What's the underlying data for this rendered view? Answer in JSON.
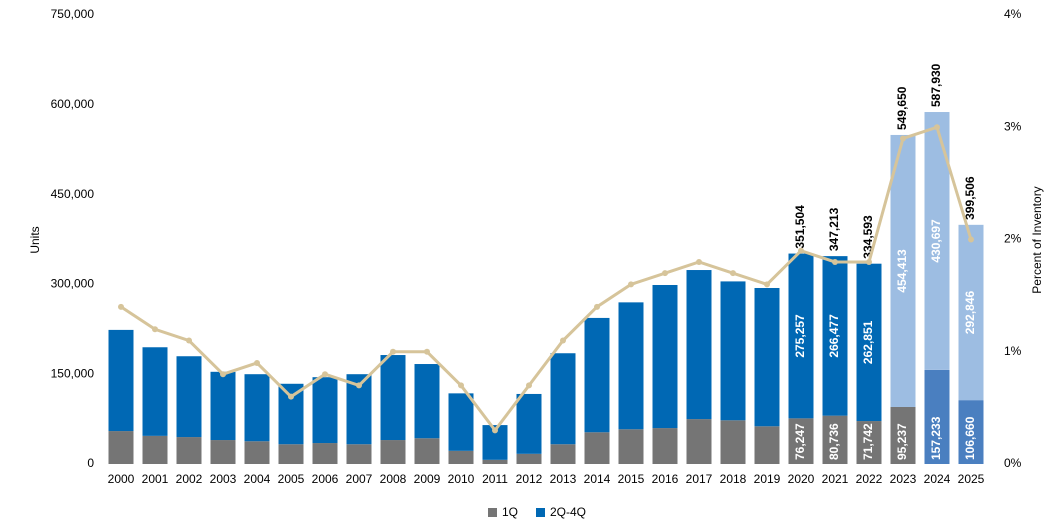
{
  "chart_data": {
    "type": "bar",
    "categories": [
      "2000",
      "2001",
      "2002",
      "2003",
      "2004",
      "2005",
      "2006",
      "2007",
      "2008",
      "2009",
      "2010",
      "2011",
      "2012",
      "2013",
      "2014",
      "2015",
      "2016",
      "2017",
      "2018",
      "2019",
      "2020",
      "2021",
      "2022",
      "2023",
      "2024",
      "2025"
    ],
    "series": [
      {
        "name": "1Q",
        "color": "#757575",
        "colors": [
          "#757575",
          "#757575",
          "#757575",
          "#757575",
          "#757575",
          "#757575",
          "#757575",
          "#757575",
          "#757575",
          "#757575",
          "#757575",
          "#757575",
          "#757575",
          "#757575",
          "#757575",
          "#757575",
          "#757575",
          "#757575",
          "#757575",
          "#757575",
          "#757575",
          "#757575",
          "#757575",
          "#757575",
          "#4a7fc0",
          "#4a7fc0"
        ],
        "values": [
          55000,
          47000,
          45000,
          40000,
          38000,
          33000,
          35000,
          33000,
          40000,
          43000,
          22000,
          7000,
          17000,
          33000,
          53000,
          58000,
          60000,
          75000,
          73000,
          63000,
          76247,
          80736,
          71742,
          95237,
          157233,
          106660
        ],
        "value_labels": [
          null,
          null,
          null,
          null,
          null,
          null,
          null,
          null,
          null,
          null,
          null,
          null,
          null,
          null,
          null,
          null,
          null,
          null,
          null,
          null,
          "76,247",
          "80,736",
          "71,742",
          "95,237",
          "157,233",
          "106,660"
        ]
      },
      {
        "name": "2Q-4Q",
        "color": "#0068b4",
        "colors": [
          "#0068b4",
          "#0068b4",
          "#0068b4",
          "#0068b4",
          "#0068b4",
          "#0068b4",
          "#0068b4",
          "#0068b4",
          "#0068b4",
          "#0068b4",
          "#0068b4",
          "#0068b4",
          "#0068b4",
          "#0068b4",
          "#0068b4",
          "#0068b4",
          "#0068b4",
          "#0068b4",
          "#0068b4",
          "#0068b4",
          "#0068b4",
          "#0068b4",
          "#0068b4",
          "#9dbde2",
          "#9dbde2",
          "#9dbde2"
        ],
        "values": [
          169000,
          148000,
          135000,
          114000,
          112000,
          101000,
          110000,
          117000,
          142000,
          124000,
          96000,
          58000,
          100000,
          152000,
          191000,
          212000,
          239000,
          249000,
          232000,
          231000,
          275257,
          266477,
          262851,
          454413,
          430697,
          292846
        ],
        "value_labels": [
          null,
          null,
          null,
          null,
          null,
          null,
          null,
          null,
          null,
          null,
          null,
          null,
          null,
          null,
          null,
          null,
          null,
          null,
          null,
          null,
          "275,257",
          "266,477",
          "262,851",
          "454,413",
          "430,697",
          "292,846"
        ]
      }
    ],
    "totals": [
      null,
      null,
      null,
      null,
      null,
      null,
      null,
      null,
      null,
      null,
      null,
      null,
      null,
      null,
      null,
      null,
      null,
      null,
      null,
      null,
      351504,
      347213,
      334593,
      549650,
      587930,
      399506
    ],
    "total_labels": [
      null,
      null,
      null,
      null,
      null,
      null,
      null,
      null,
      null,
      null,
      null,
      null,
      null,
      null,
      null,
      null,
      null,
      null,
      null,
      null,
      "351,504",
      "347,213",
      "334,593",
      "549,650",
      "587,930",
      "399,506"
    ],
    "line": {
      "type": "line",
      "axis": "y2",
      "color": "#d6c49a",
      "values": [
        1.4,
        1.2,
        1.1,
        0.8,
        0.9,
        0.6,
        0.8,
        0.7,
        1.0,
        1.0,
        0.7,
        0.3,
        0.7,
        1.1,
        1.4,
        1.6,
        1.7,
        1.8,
        1.7,
        1.6,
        1.9,
        1.8,
        1.8,
        2.9,
        3.0,
        2.0
      ]
    },
    "ylabel": "Units",
    "y2label": "Percent of Inventory",
    "ylim": [
      0,
      750000
    ],
    "yticks": [
      0,
      {
        "value": 150000,
        "label": "150,000"
      },
      {
        "value": 300000,
        "label": "300,000"
      },
      {
        "value": 450000,
        "label": "450,000"
      },
      {
        "value": 600000,
        "label": "600,000"
      },
      {
        "value": 750000,
        "label": "750,000"
      }
    ],
    "y2lim": [
      0,
      4
    ],
    "y2ticks": [
      {
        "value": 0,
        "label": "0%"
      },
      {
        "value": 1,
        "label": "1%"
      },
      {
        "value": 2,
        "label": "2%"
      },
      {
        "value": 3,
        "label": "3%"
      },
      {
        "value": 4,
        "label": "4%"
      }
    ],
    "legend": "bottom"
  }
}
